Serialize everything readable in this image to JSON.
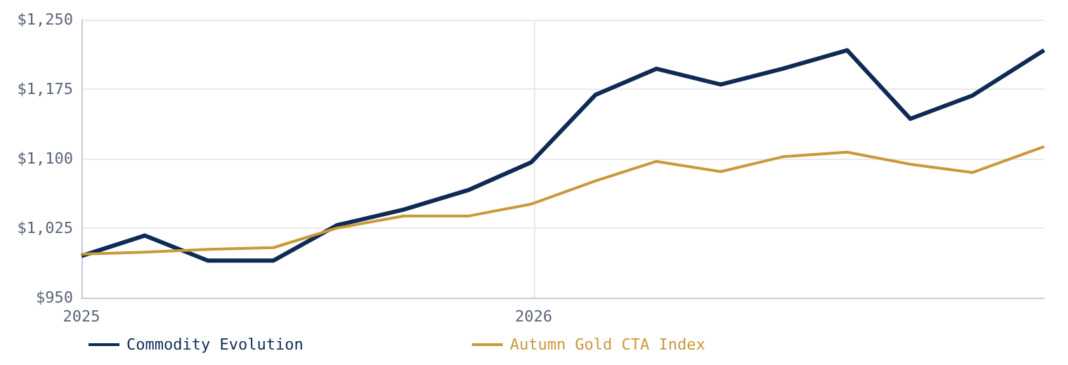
{
  "chart_data": {
    "type": "line",
    "x": [
      "2025-01-01",
      "2025-02-21",
      "2025-04-13",
      "2025-06-05",
      "2025-07-26",
      "2025-09-18",
      "2025-11-09",
      "2025-12-30",
      "2026-02-20",
      "2026-04-10",
      "2026-06-01",
      "2026-07-21",
      "2026-09-11",
      "2026-11-01",
      "2026-12-21",
      "2027-02-17"
    ],
    "series": [
      {
        "name": "Commodity Evolution",
        "color": "#0e2a55",
        "values": [
          995,
          1017,
          990,
          990,
          1028,
          1045,
          1066,
          1096,
          1169,
          1197,
          1180,
          1197,
          1217,
          1143,
          1168,
          1217
        ]
      },
      {
        "name": "Autumn Gold CTA Index",
        "color": "#c9993a",
        "values": [
          997,
          999,
          1002,
          1004,
          1025,
          1038,
          1038,
          1051,
          1076,
          1097,
          1086,
          1102,
          1107,
          1094,
          1085,
          1113
        ]
      }
    ],
    "xlim": [
      "2025-01-01",
      "2027-02-17"
    ],
    "xticks": [
      "2025",
      "2026"
    ],
    "ylim": [
      950,
      1250
    ],
    "yticks": [
      {
        "value": 950,
        "label": "$950"
      },
      {
        "value": 1025,
        "label": "$1,025"
      },
      {
        "value": 1100,
        "label": "$1,100"
      },
      {
        "value": 1175,
        "label": "$1,175"
      },
      {
        "value": 1250,
        "label": "$1,250"
      }
    ],
    "grid": true,
    "legend": "bottom",
    "marker": "none",
    "line_style": "solid"
  }
}
